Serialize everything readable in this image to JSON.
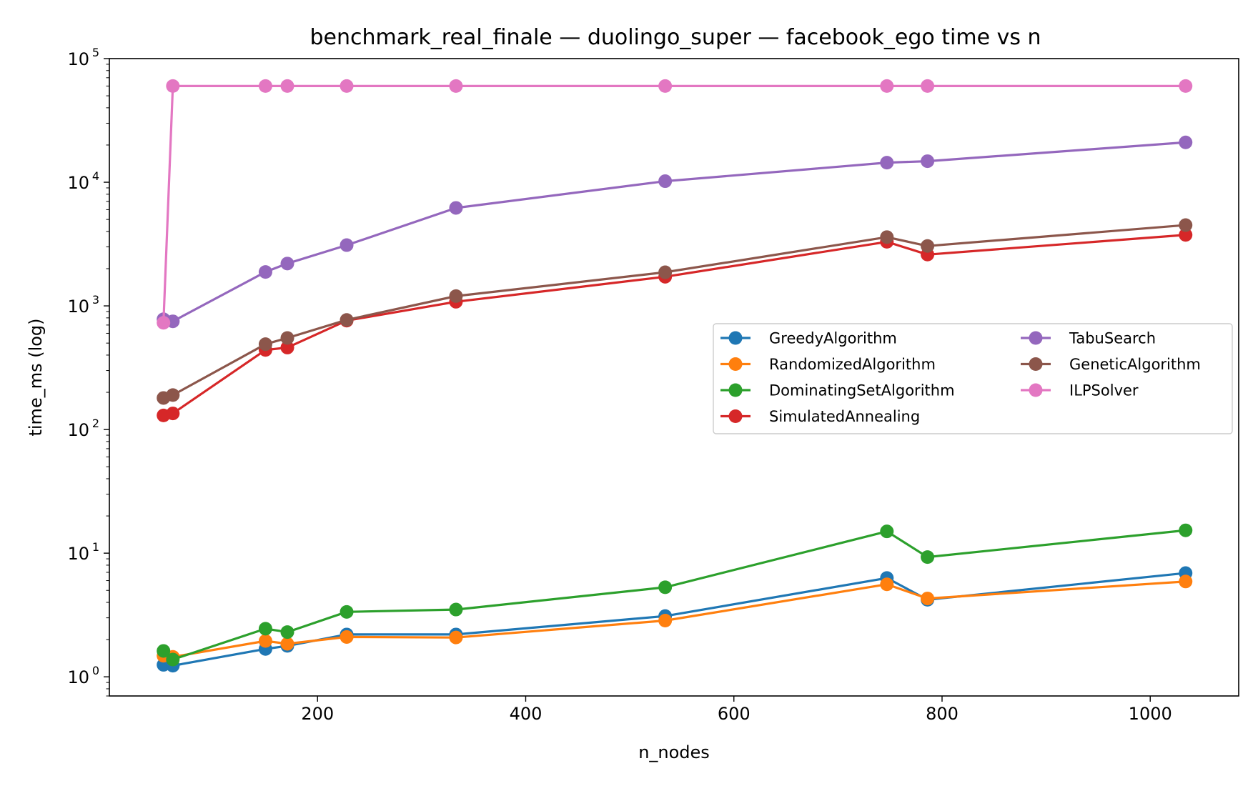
{
  "chart_data": {
    "type": "line",
    "title": "benchmark_real_finale — duolingo_super — facebook_ego time vs n",
    "xlabel": "n_nodes",
    "ylabel": "time_ms (log)",
    "yscale": "log",
    "xlim": [
      0,
      1085
    ],
    "ylim": [
      0.7,
      100000
    ],
    "xticks": [
      200,
      400,
      600,
      800,
      1000
    ],
    "yticks": [
      {
        "value": 1,
        "base": "10",
        "exp": "0"
      },
      {
        "value": 10,
        "base": "10",
        "exp": "1"
      },
      {
        "value": 100,
        "base": "10",
        "exp": "2"
      },
      {
        "value": 1000,
        "base": "10",
        "exp": "3"
      },
      {
        "value": 10000,
        "base": "10",
        "exp": "4"
      },
      {
        "value": 100000,
        "base": "10",
        "exp": "5"
      }
    ],
    "grid": false,
    "legend_position": "center-right",
    "legend_columns": 2,
    "series": [
      {
        "name": "GreedyAlgorithm",
        "color": "#1f77b4",
        "x": [
          52,
          61,
          150,
          171,
          228,
          333,
          534,
          747,
          786,
          1034
        ],
        "y": [
          1.25,
          1.23,
          1.68,
          1.78,
          2.2,
          2.2,
          3.1,
          6.3,
          4.2,
          6.9
        ]
      },
      {
        "name": "RandomizedAlgorithm",
        "color": "#ff7f0e",
        "x": [
          52,
          61,
          150,
          171,
          228,
          333,
          534,
          747,
          786,
          1034
        ],
        "y": [
          1.48,
          1.45,
          1.95,
          1.85,
          2.1,
          2.08,
          2.85,
          5.6,
          4.3,
          5.9
        ]
      },
      {
        "name": "DominatingSetAlgorithm",
        "color": "#2ca02c",
        "x": [
          52,
          61,
          150,
          171,
          228,
          333,
          534,
          747,
          786,
          1034
        ],
        "y": [
          1.62,
          1.38,
          2.45,
          2.3,
          3.35,
          3.5,
          5.3,
          15,
          9.3,
          15.3
        ]
      },
      {
        "name": "SimulatedAnnealing",
        "color": "#d62728",
        "x": [
          52,
          61,
          150,
          171,
          228,
          333,
          534,
          747,
          786,
          1034
        ],
        "y": [
          130,
          135,
          440,
          460,
          760,
          1080,
          1720,
          3300,
          2600,
          3750
        ]
      },
      {
        "name": "TabuSearch",
        "color": "#9467bd",
        "x": [
          52,
          61,
          150,
          171,
          228,
          333,
          534,
          747,
          786,
          1034
        ],
        "y": [
          780,
          750,
          1880,
          2200,
          3100,
          6200,
          10200,
          14400,
          14800,
          21000
        ]
      },
      {
        "name": "GeneticAlgorithm",
        "color": "#8c564b",
        "x": [
          52,
          61,
          150,
          171,
          228,
          333,
          534,
          747,
          786,
          1034
        ],
        "y": [
          180,
          190,
          490,
          550,
          770,
          1200,
          1870,
          3600,
          3050,
          4500
        ]
      },
      {
        "name": "ILPSolver",
        "color": "#e377c2",
        "x": [
          52,
          61,
          150,
          171,
          228,
          333,
          534,
          747,
          786,
          1034
        ],
        "y": [
          730,
          60000,
          60000,
          60000,
          60000,
          60000,
          60000,
          60000,
          60000,
          60000
        ]
      }
    ]
  }
}
